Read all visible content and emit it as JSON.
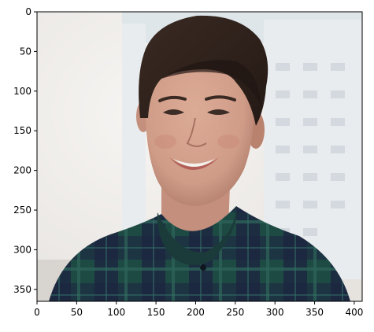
{
  "figure": {
    "image_description": "portrait photo: smiling person with short dark hair in dark green/navy plaid shirt, blurred bright building background",
    "x_axis": {
      "ticks": [
        0,
        50,
        100,
        150,
        200,
        250,
        300,
        350,
        400
      ],
      "range": [
        0,
        410
      ]
    },
    "y_axis": {
      "ticks": [
        0,
        50,
        100,
        150,
        200,
        250,
        300,
        350
      ],
      "range": [
        0,
        365
      ]
    },
    "colors": {
      "background_light": "#eeebe8",
      "sky": "#dfe6ea",
      "building": "#e8ecef",
      "window": "#d3d9de",
      "hair": "#2d211c",
      "skin": "#cf9c88",
      "skin_shadow": "#b07d6c",
      "shirt_navy": "#1c2340",
      "shirt_green": "#1e4a44",
      "shirt_teal": "#2c6258",
      "teeth": "#f4f0ec",
      "lips": "#b15e58"
    }
  }
}
